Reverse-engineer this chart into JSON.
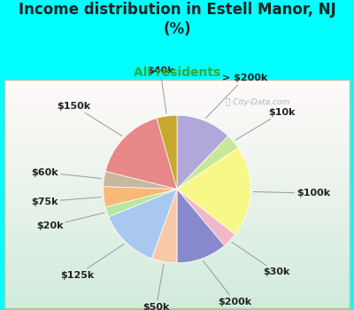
{
  "title": "Income distribution in Estell Manor, NJ\n(%)",
  "subtitle": "All residents",
  "background_color": "#00FFFF",
  "watermark": "City-Data.com",
  "slices": [
    {
      "label": "> $200k",
      "value": 11,
      "color": "#b0a8d8"
    },
    {
      "label": "$10k",
      "value": 3,
      "color": "#c8e898"
    },
    {
      "label": "$100k",
      "value": 18,
      "color": "#f8f888"
    },
    {
      "label": "$30k",
      "value": 3,
      "color": "#f0b8c8"
    },
    {
      "label": "$200k",
      "value": 10,
      "color": "#8888cc"
    },
    {
      "label": "$50k",
      "value": 5,
      "color": "#f8c8a8"
    },
    {
      "label": "$125k",
      "value": 12,
      "color": "#a8c8f0"
    },
    {
      "label": "$20k",
      "value": 2,
      "color": "#b8e8a0"
    },
    {
      "label": "$75k",
      "value": 4,
      "color": "#f8b878"
    },
    {
      "label": "$60k",
      "value": 3,
      "color": "#c8b8a0"
    },
    {
      "label": "$150k",
      "value": 15,
      "color": "#e88888"
    },
    {
      "label": "$40k",
      "value": 4,
      "color": "#c8a830"
    }
  ],
  "title_fontsize": 12,
  "subtitle_fontsize": 10,
  "label_fontsize": 8
}
